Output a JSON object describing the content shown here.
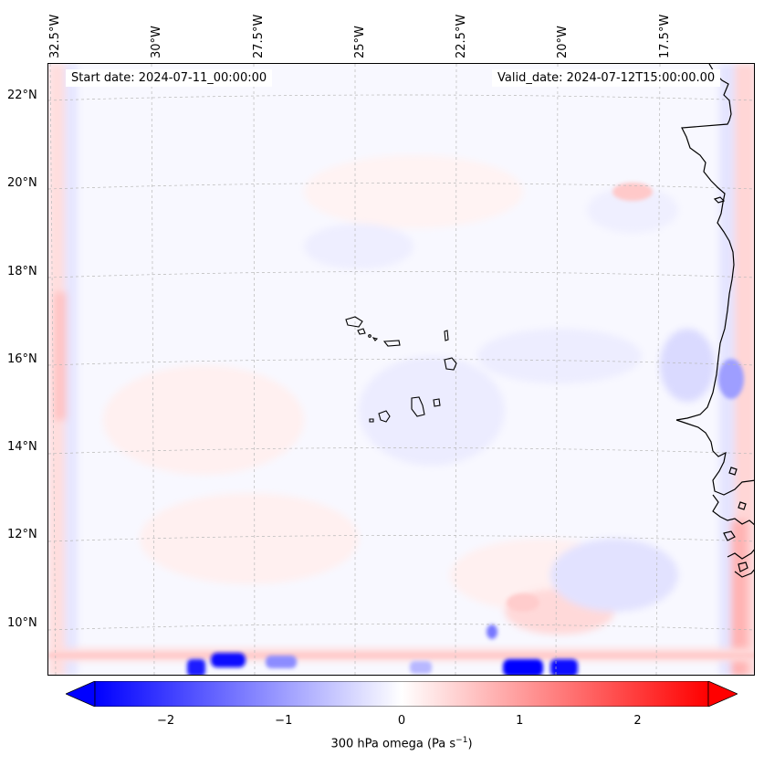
{
  "map": {
    "start_date_label": "Start date: 2024-07-11_00:00:00",
    "valid_date_label": "Valid_date: 2024-07-12T15:00:00.00",
    "longitude_labels": [
      "32.5°W",
      "30°W",
      "27.5°W",
      "25°W",
      "22.5°W",
      "20°W",
      "17.5°W"
    ],
    "latitude_labels": [
      "22°N",
      "20°N",
      "18°N",
      "16°N",
      "14°N",
      "12°N",
      "10°N"
    ],
    "coastline_color": "#000000",
    "gridline_color": "#b8b8b8"
  },
  "colorbar": {
    "label_prefix": "300 hPa omega (Pa s",
    "label_exponent": "−1",
    "label_suffix": ")",
    "tick_labels": [
      "−2",
      "−1",
      "0",
      "1",
      "2"
    ],
    "tick_values": [
      -2,
      -1,
      0,
      1,
      2
    ],
    "range": [
      -2.6,
      2.6
    ],
    "cmap": "bwr",
    "low_color": "#0000ff",
    "mid_color": "#ffffff",
    "high_color": "#ff0000"
  }
}
